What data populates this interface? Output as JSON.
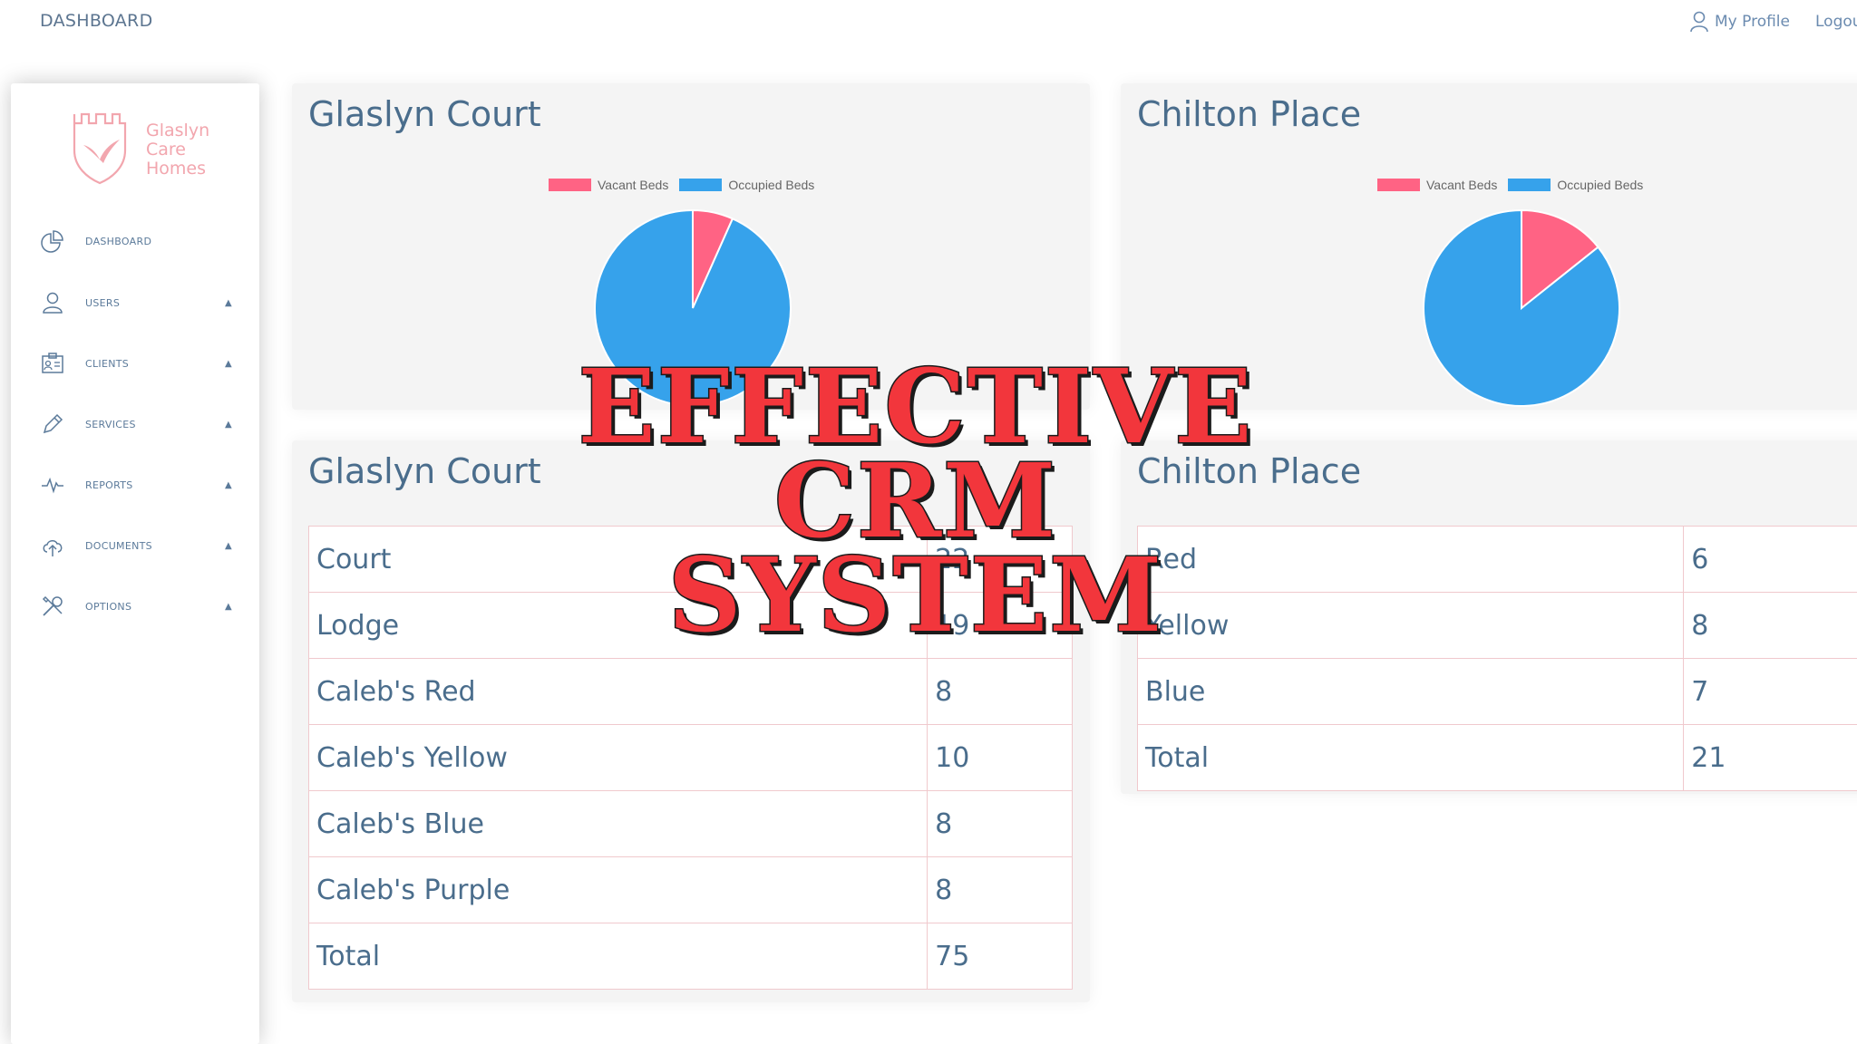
{
  "topbar": {
    "title": "DASHBOARD",
    "profile_label": "My Profile",
    "logout_label": "Logout",
    "profile_icon": "user-icon",
    "logout_icon": "power-icon"
  },
  "brand": {
    "line1": "Glaslyn",
    "line2": "Care",
    "line3": "Homes",
    "logo_icon": "castle-bird-logo",
    "color": "#f2a6ae"
  },
  "sidebar": {
    "items": [
      {
        "label": "DASHBOARD",
        "icon": "pie-chart-icon",
        "has_caret": false
      },
      {
        "label": "USERS",
        "icon": "user-icon",
        "has_caret": true
      },
      {
        "label": "CLIENTS",
        "icon": "id-card-icon",
        "has_caret": true
      },
      {
        "label": "SERVICES",
        "icon": "pencil-icon",
        "has_caret": true
      },
      {
        "label": "REPORTS",
        "icon": "pulse-icon",
        "has_caret": true
      },
      {
        "label": "DOCUMENTS",
        "icon": "cloud-upload-icon",
        "has_caret": true
      },
      {
        "label": "OPTIONS",
        "icon": "tools-icon",
        "has_caret": true
      }
    ],
    "caret": "▲"
  },
  "colors": {
    "vacant": "#ff6384",
    "occupied": "#36a2eb"
  },
  "chart_data": [
    {
      "type": "pie",
      "title": "Glaslyn Court",
      "legend": [
        "Vacant Beds",
        "Occupied Beds"
      ],
      "categories": [
        "Vacant Beds",
        "Occupied Beds"
      ],
      "values": [
        5,
        70
      ],
      "legend_position": "top"
    },
    {
      "type": "pie",
      "title": "Chilton Place",
      "legend": [
        "Vacant Beds",
        "Occupied Beds"
      ],
      "categories": [
        "Vacant Beds",
        "Occupied Beds"
      ],
      "values": [
        3,
        18
      ],
      "legend_position": "top"
    }
  ],
  "tables": [
    {
      "title": "Glaslyn Court",
      "rows": [
        {
          "name": "Court",
          "value": "22"
        },
        {
          "name": "Lodge",
          "value": "19"
        },
        {
          "name": "Caleb's Red",
          "value": "8"
        },
        {
          "name": "Caleb's Yellow",
          "value": "10"
        },
        {
          "name": "Caleb's Blue",
          "value": "8"
        },
        {
          "name": "Caleb's Purple",
          "value": "8"
        },
        {
          "name": "Total",
          "value": "75"
        }
      ]
    },
    {
      "title": "Chilton Place",
      "rows": [
        {
          "name": "Red",
          "value": "6"
        },
        {
          "name": "Yellow",
          "value": "8"
        },
        {
          "name": "Blue",
          "value": "7"
        },
        {
          "name": "Total",
          "value": "21"
        }
      ]
    }
  ],
  "overlay": {
    "line1": "EFFECTIVE",
    "line2": "CRM",
    "line3": "SYSTEM"
  }
}
